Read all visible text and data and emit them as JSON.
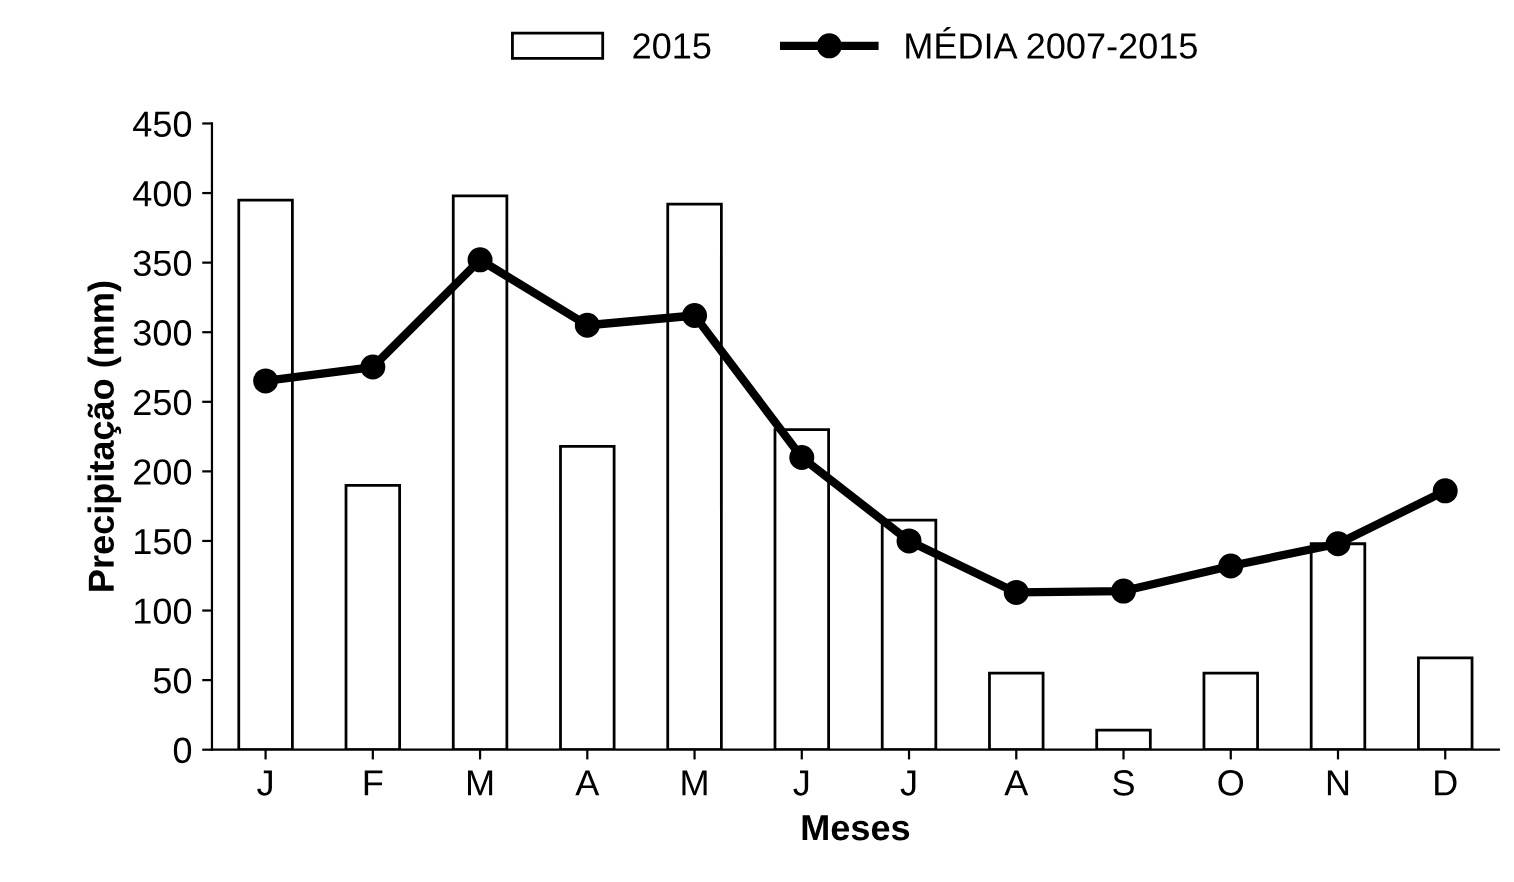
{
  "chart_data": {
    "type": "bar",
    "xlabel": "Meses",
    "ylabel": "Precipitação (mm)",
    "categories": [
      "J",
      "F",
      "M",
      "A",
      "M",
      "J",
      "J",
      "A",
      "S",
      "O",
      "N",
      "D"
    ],
    "series": [
      {
        "name": "2015",
        "color": "#ffffff",
        "values": [
          395,
          190,
          398,
          218,
          392,
          230,
          165,
          55,
          14,
          55,
          148,
          66
        ]
      },
      {
        "name": "MÉDIA 2007-2015",
        "type": "line",
        "color": "#000000",
        "values": [
          265,
          275,
          352,
          305,
          312,
          210,
          150,
          113,
          114,
          132,
          148,
          186
        ]
      }
    ],
    "ylim": [
      0,
      450
    ],
    "yticks": [
      0,
      50,
      100,
      150,
      200,
      250,
      300,
      350,
      400,
      450
    ],
    "grid": false,
    "legend": "top",
    "marker": "circle",
    "line_style": "solid"
  }
}
